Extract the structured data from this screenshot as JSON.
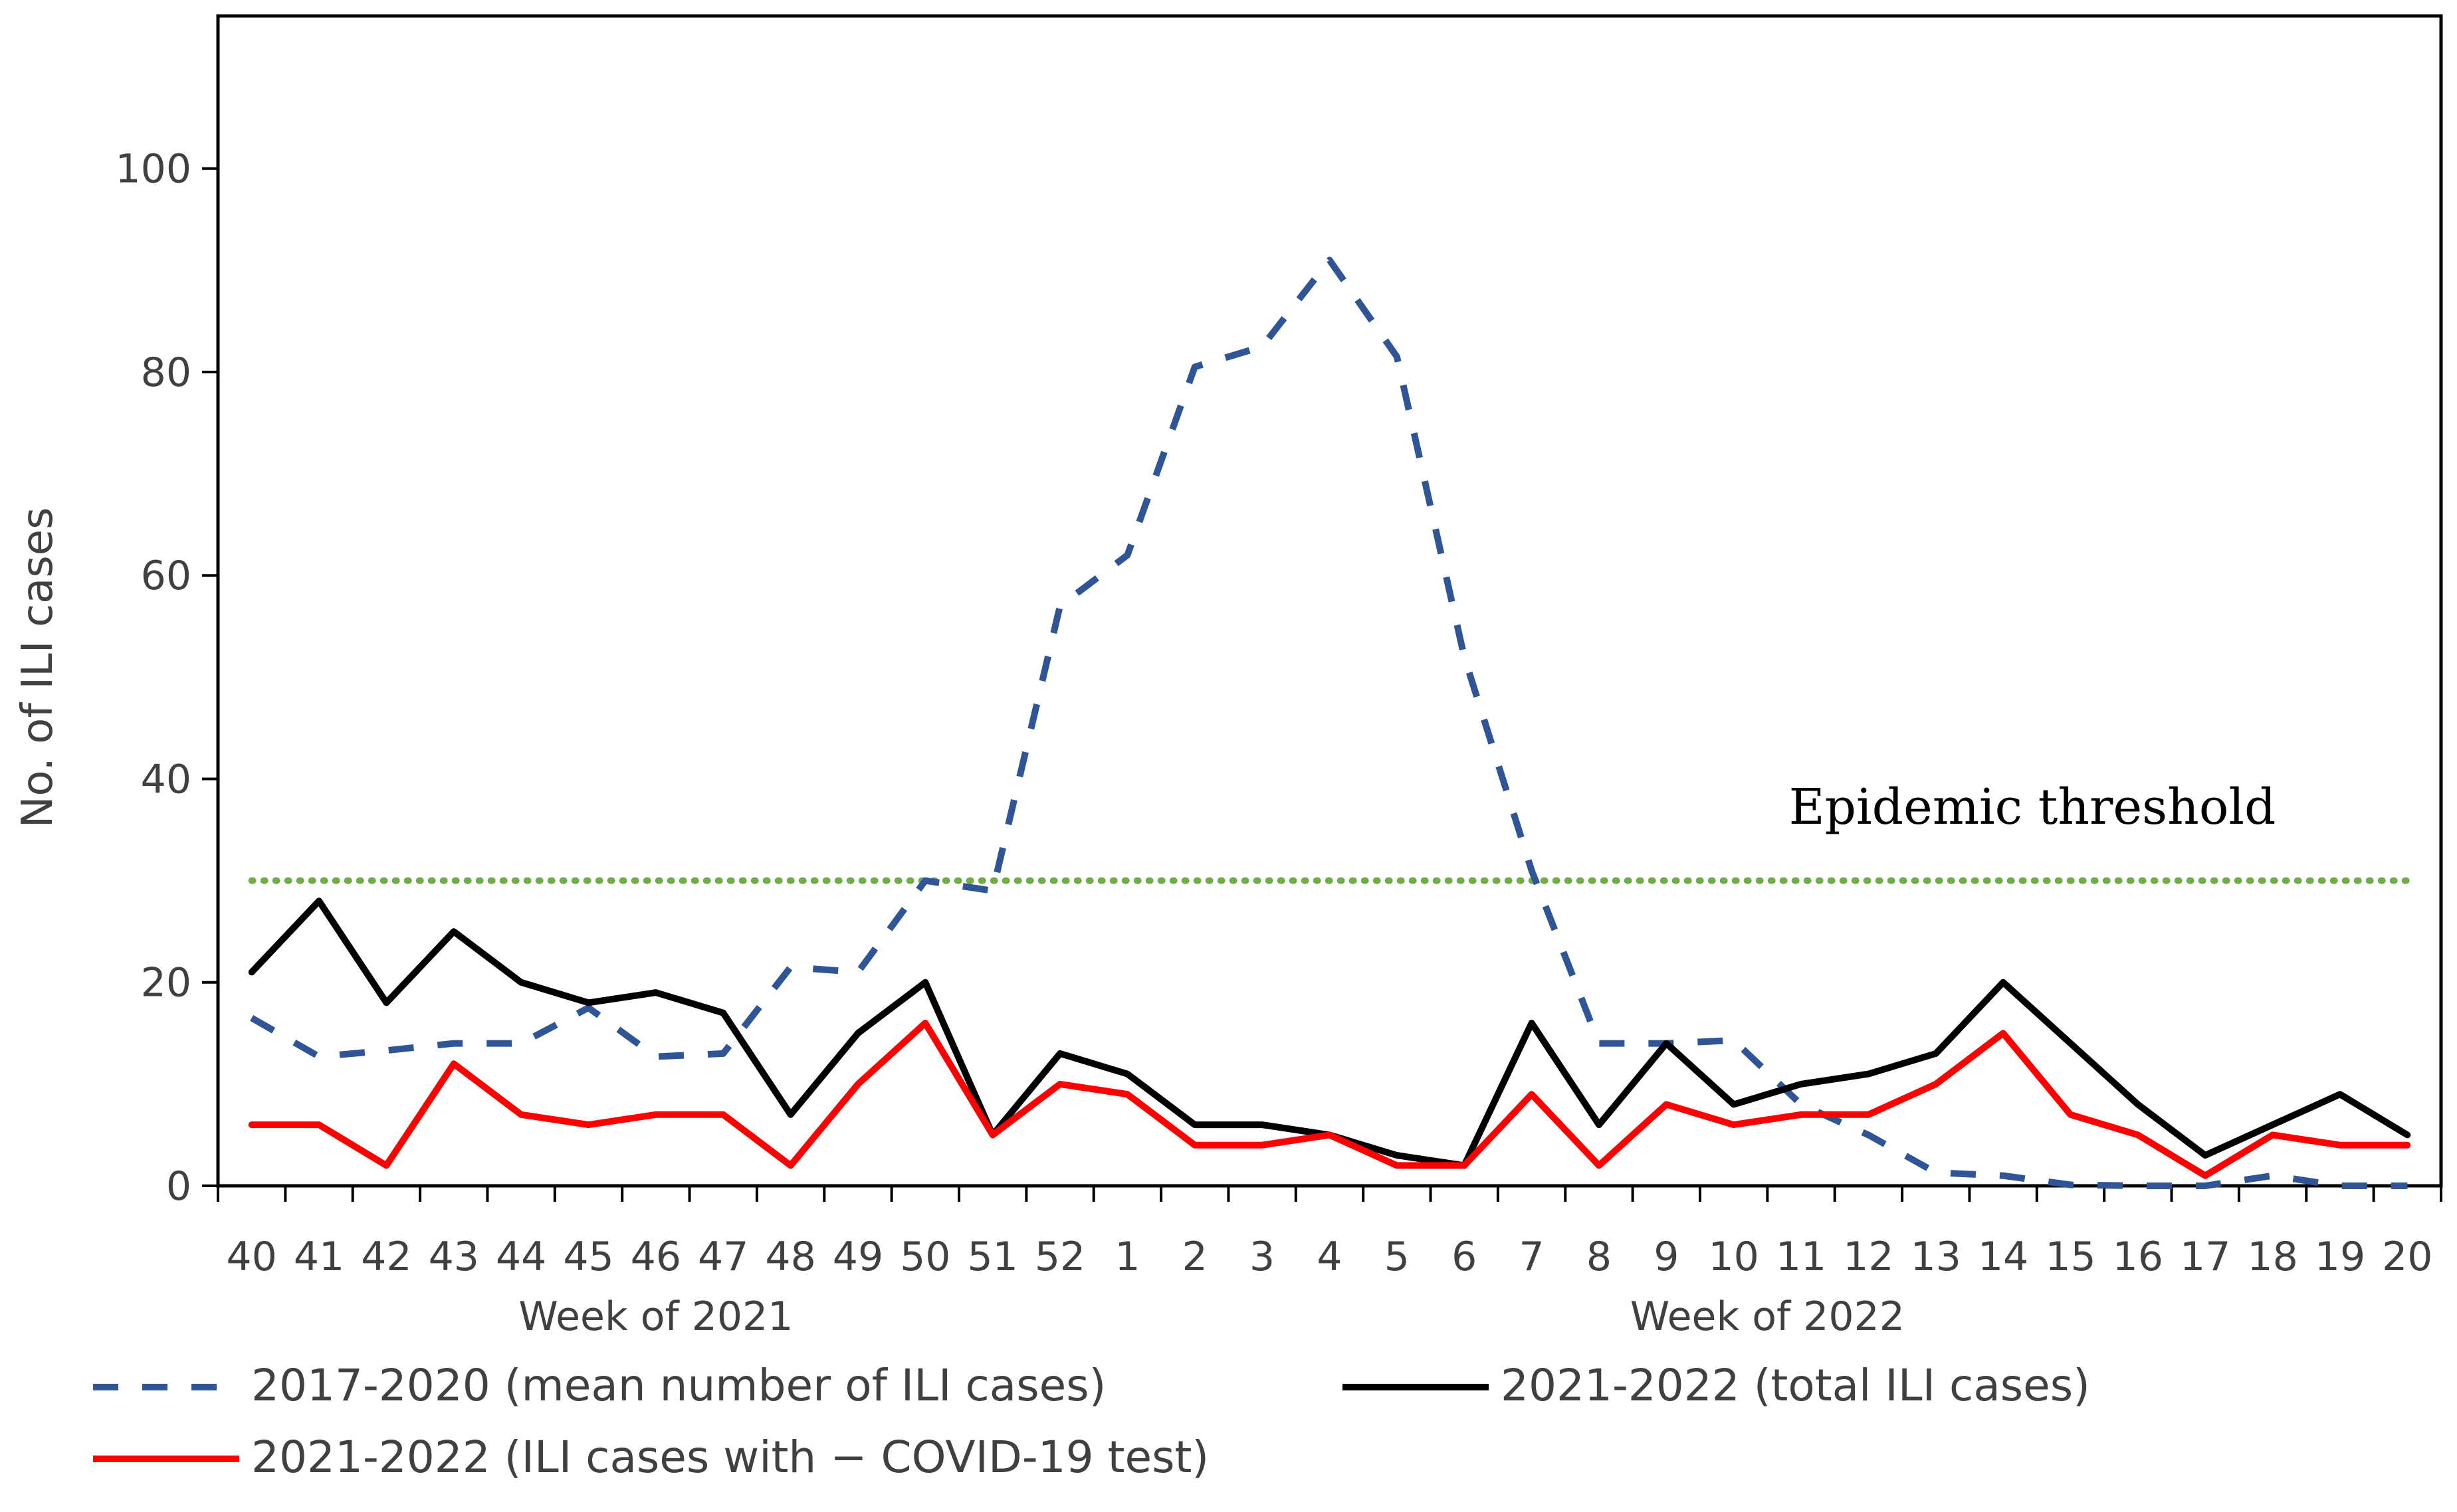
{
  "chart_data": {
    "type": "line",
    "title": "",
    "ylabel": "No. of ILI cases",
    "ylim": [
      0,
      115
    ],
    "yticks": [
      0,
      20,
      40,
      60,
      80,
      100
    ],
    "categories": [
      "40",
      "41",
      "42",
      "43",
      "44",
      "45",
      "46",
      "47",
      "48",
      "49",
      "50",
      "51",
      "52",
      "1",
      "2",
      "3",
      "4",
      "5",
      "6",
      "7",
      "8",
      "9",
      "10",
      "11",
      "12",
      "13",
      "14",
      "15",
      "16",
      "17",
      "18",
      "19",
      "20"
    ],
    "group_labels": [
      {
        "text": "Week of 2021",
        "from": 0,
        "to": 12
      },
      {
        "text": "Week of 2022",
        "from": 13,
        "to": 32
      }
    ],
    "threshold": {
      "value": 30,
      "label": "Epidemic threshold",
      "color": "#70AD47"
    },
    "series": [
      {
        "name": "2017-2020 (mean number of ILI cases)",
        "style": "dashed",
        "color": "#2F5597",
        "values": [
          16.5,
          12.7,
          13.3,
          14,
          14,
          17.5,
          12.7,
          13,
          21.5,
          21,
          30,
          29,
          57,
          62,
          80.5,
          82.5,
          91,
          81.5,
          52,
          31,
          14,
          14,
          14.3,
          8,
          5,
          1.3,
          1,
          0.1,
          0,
          0,
          1,
          0,
          0
        ]
      },
      {
        "name": "2021-2022 (total ILI cases)",
        "style": "solid",
        "color": "#000000",
        "values": [
          21,
          28,
          18,
          25,
          20,
          18,
          19,
          17,
          7,
          15,
          20,
          5,
          13,
          11,
          6,
          6,
          5,
          3,
          2,
          16,
          6,
          14,
          8,
          10,
          11,
          13,
          20,
          14,
          8,
          3,
          6,
          9,
          5
        ]
      },
      {
        "name": "2021-2022 (ILI cases with − COVID-19 test)",
        "style": "solid",
        "color": "#FF0000",
        "values": [
          6,
          6,
          2,
          12,
          7,
          6,
          7,
          7,
          2,
          10,
          16,
          5,
          10,
          9,
          4,
          4,
          5,
          2,
          2,
          9,
          2,
          8,
          6,
          7,
          7,
          10,
          15,
          7,
          5,
          1,
          5,
          4,
          4
        ]
      }
    ]
  }
}
